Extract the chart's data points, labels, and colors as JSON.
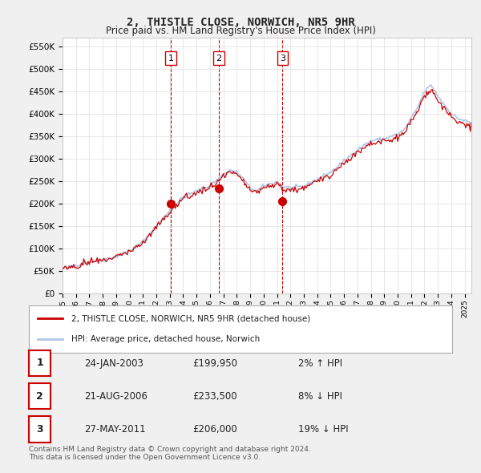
{
  "title": "2, THISTLE CLOSE, NORWICH, NR5 9HR",
  "subtitle": "Price paid vs. HM Land Registry's House Price Index (HPI)",
  "ylabel_ticks": [
    "£0",
    "£50K",
    "£100K",
    "£150K",
    "£200K",
    "£250K",
    "£300K",
    "£350K",
    "£400K",
    "£450K",
    "£500K",
    "£550K"
  ],
  "ytick_values": [
    0,
    50000,
    100000,
    150000,
    200000,
    250000,
    300000,
    350000,
    400000,
    450000,
    500000,
    550000
  ],
  "ylim": [
    0,
    570000
  ],
  "background_color": "#f0f0f0",
  "plot_bg_color": "#ffffff",
  "hpi_color": "#aec6e8",
  "price_color": "#cc0000",
  "sale_marker_color": "#cc0000",
  "grid_color": "#dddddd",
  "sale_points": [
    {
      "date": "2003-01-24",
      "price": 199950,
      "label": "1",
      "x": 2003.07
    },
    {
      "date": "2006-08-21",
      "price": 233500,
      "label": "2",
      "x": 2006.64
    },
    {
      "date": "2011-05-27",
      "price": 206000,
      "label": "3",
      "x": 2011.41
    }
  ],
  "legend_price_label": "2, THISTLE CLOSE, NORWICH, NR5 9HR (detached house)",
  "legend_hpi_label": "HPI: Average price, detached house, Norwich",
  "table_rows": [
    {
      "num": "1",
      "date": "24-JAN-2003",
      "price": "£199,950",
      "hpi": "2% ↑ HPI"
    },
    {
      "num": "2",
      "date": "21-AUG-2006",
      "price": "£233,500",
      "hpi": "8% ↓ HPI"
    },
    {
      "num": "3",
      "date": "27-MAY-2011",
      "price": "£206,000",
      "hpi": "19% ↓ HPI"
    }
  ],
  "footer": "Contains HM Land Registry data © Crown copyright and database right 2024.\nThis data is licensed under the Open Government Licence v3.0.",
  "xmin": 1995.0,
  "xmax": 2025.5
}
